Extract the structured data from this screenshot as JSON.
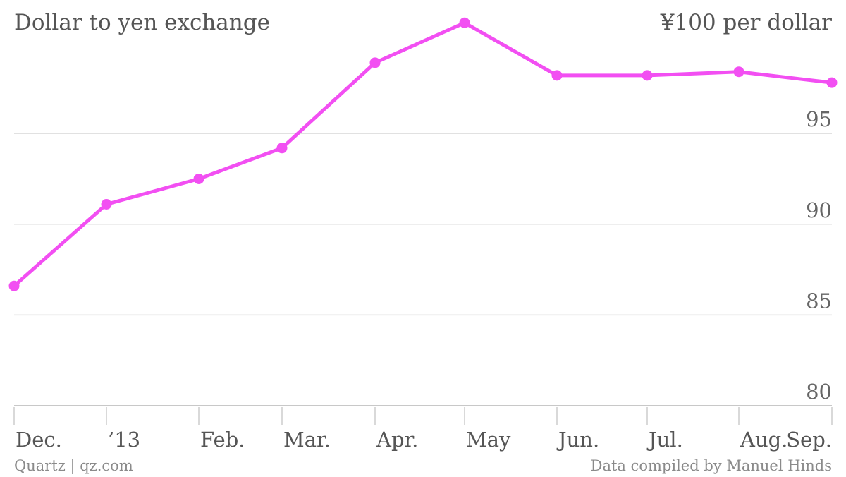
{
  "chart_data": {
    "type": "line",
    "title": "Dollar to yen exchange",
    "unit_label": "¥100 per dollar",
    "categories": [
      "Dec.",
      "’13",
      "Feb.",
      "Mar.",
      "Apr.",
      "May",
      "Jun.",
      "Jul.",
      "Aug.",
      "Sep."
    ],
    "series": [
      {
        "values": [
          86.6,
          91.1,
          92.5,
          94.2,
          98.9,
          101.1,
          98.2,
          98.2,
          98.4,
          97.8
        ]
      }
    ],
    "yticks": [
      80,
      85,
      90,
      95
    ],
    "ylim": [
      80,
      101.5
    ],
    "grid": true,
    "y_axis_side": "right"
  },
  "colors": {
    "series": "#f24ff2",
    "text": "#555555",
    "grid": "#dddddd"
  },
  "footer": {
    "source_left": "Quartz | qz.com",
    "source_right": "Data compiled by Manuel Hinds"
  }
}
